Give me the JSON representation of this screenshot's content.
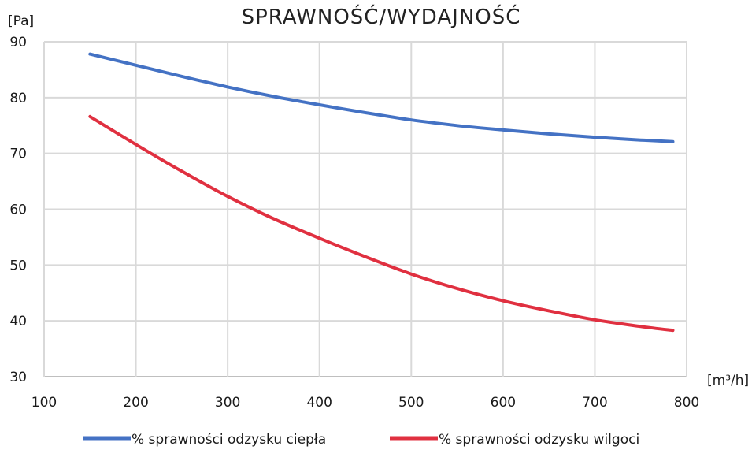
{
  "chart_data": {
    "type": "line",
    "title": "SPRAWNOŚĆ/WYDAJNOŚĆ",
    "ylabel": "[Pa]",
    "xlabel": "[m³/h]",
    "xlim": [
      100,
      800
    ],
    "ylim": [
      30,
      90
    ],
    "x_ticks": [
      100,
      200,
      300,
      400,
      500,
      600,
      700,
      800
    ],
    "y_ticks": [
      30,
      40,
      50,
      60,
      70,
      80,
      90
    ],
    "grid": true,
    "legend_position": "bottom",
    "series": [
      {
        "name": "% sprawności odzysku ciepła",
        "color": "#4472C4",
        "x": [
          150,
          200,
          250,
          300,
          350,
          400,
          450,
          500,
          550,
          600,
          650,
          700,
          750,
          785
        ],
        "y": [
          87.8,
          85.8,
          83.8,
          81.9,
          80.2,
          78.7,
          77.3,
          76.0,
          75.0,
          74.2,
          73.5,
          72.9,
          72.4,
          72.1
        ]
      },
      {
        "name": "% sprawności odzysku wilgoci",
        "color": "#E03040",
        "x": [
          150,
          200,
          250,
          300,
          350,
          400,
          450,
          500,
          550,
          600,
          650,
          700,
          750,
          785
        ],
        "y": [
          76.6,
          71.6,
          66.8,
          62.3,
          58.3,
          54.8,
          51.5,
          48.4,
          45.8,
          43.6,
          41.8,
          40.2,
          39.0,
          38.3
        ]
      }
    ]
  }
}
